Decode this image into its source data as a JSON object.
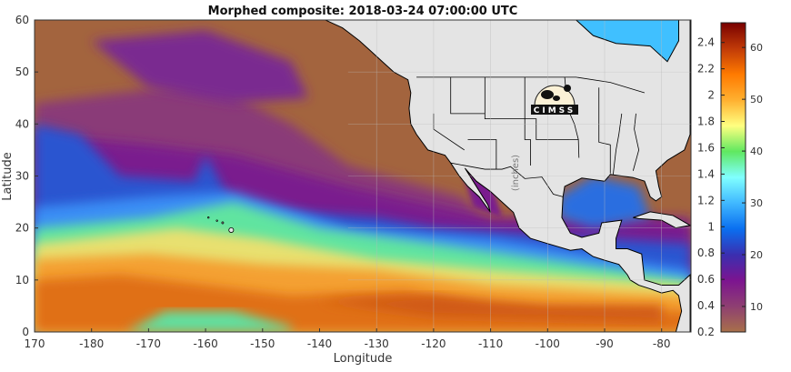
{
  "title": "Morphed composite: 2018-03-24 07:00:00 UTC",
  "x_axis": {
    "label": "Longitude",
    "ticks": [
      "170",
      "-180",
      "-170",
      "-160",
      "-150",
      "-140",
      "-130",
      "-120",
      "-110",
      "-100",
      "-90",
      "-80"
    ],
    "tick_values": [
      170,
      180,
      190,
      200,
      210,
      220,
      230,
      240,
      250,
      260,
      270,
      280
    ],
    "range": [
      170,
      285
    ]
  },
  "y_axis": {
    "label": "Latitude",
    "ticks": [
      "0",
      "10",
      "20",
      "30",
      "40",
      "50",
      "60"
    ],
    "tick_values": [
      0,
      10,
      20,
      30,
      40,
      50,
      60
    ],
    "range": [
      0,
      60
    ]
  },
  "colorbar": {
    "label": "(inches)",
    "left_ticks": [
      "0.2",
      "0.4",
      "0.6",
      "0.8",
      "1",
      "1.2",
      "1.4",
      "1.6",
      "1.8",
      "2",
      "2.2",
      "2.4"
    ],
    "left_values": [
      0.2,
      0.4,
      0.6,
      0.8,
      1.0,
      1.2,
      1.4,
      1.6,
      1.8,
      2.0,
      2.2,
      2.4
    ],
    "right_ticks": [
      "10",
      "20",
      "30",
      "40",
      "50",
      "60"
    ],
    "right_values": [
      10,
      20,
      30,
      40,
      50,
      60
    ],
    "range_inches": [
      0.2,
      2.55
    ],
    "colors": [
      "#a8704a",
      "#8e3f72",
      "#7c1490",
      "#3a2fb0",
      "#0a6ff0",
      "#40b8ff",
      "#80ffff",
      "#60e860",
      "#ffff80",
      "#ffb030",
      "#ff7a00",
      "#c03a08",
      "#780000"
    ]
  },
  "logo": {
    "text": "CIMSS"
  },
  "colors": {
    "land": "#e4e4e4",
    "coast": "#000000",
    "dry": "#a0603c"
  }
}
